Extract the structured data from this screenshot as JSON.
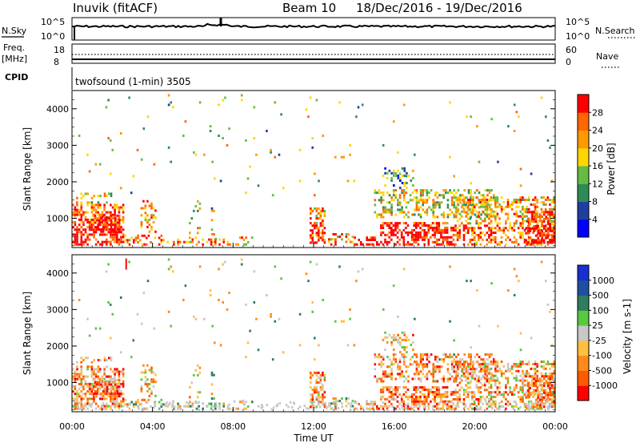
{
  "header": {
    "station": "Inuvik (fitACF)",
    "beam": "Beam 10",
    "date_range": "18/Dec/2016 - 19/Dec/2016"
  },
  "strip_labels": {
    "nsky": "N.Sky",
    "nsearch": "N.Search",
    "freq_line1": "Freq.",
    "freq_line2": "[MHz]",
    "nave": "Nave",
    "cpid": "CPID",
    "cpid_text": "twofsound (1-min) 3505",
    "noise_left_ticks": [
      "10^5",
      "10^0"
    ],
    "noise_right_ticks": [
      "10^5",
      "10^0"
    ],
    "freq_left_ticks": [
      "18",
      "8"
    ],
    "freq_right_ticks": [
      "60",
      "0"
    ]
  },
  "colors": {
    "power_scale": [
      "#0000ff",
      "#1f3f9f",
      "#2e8b57",
      "#66bb44",
      "#ffd700",
      "#ff9900",
      "#ff6600",
      "#ff0000"
    ],
    "velocity_scale": [
      "#ff0000",
      "#ff5a00",
      "#ff8a1a",
      "#ffbf40",
      "#c8c8c8",
      "#57c840",
      "#2e7d5c",
      "#1f4f9f",
      "#1a2fcf"
    ]
  },
  "chart_data": [
    {
      "type": "heatmap",
      "panel": "power",
      "ylabel": "Slant Range [km]",
      "ylim": [
        200,
        4500
      ],
      "y_ticks": [
        "1000",
        "2000",
        "3000",
        "4000"
      ],
      "colorbar_label": "Power [dB]",
      "colorbar_ticks": [
        "4",
        "8",
        "12",
        "16",
        "20",
        "24",
        "28"
      ],
      "colorbar_range": [
        0,
        32
      ]
    },
    {
      "type": "heatmap",
      "panel": "velocity",
      "ylabel": "Slant Range [km]",
      "ylim": [
        200,
        4500
      ],
      "y_ticks": [
        "1000",
        "2000",
        "3000",
        "4000"
      ],
      "colorbar_label": "Velocity [m s-1]",
      "colorbar_ticks": [
        "1000",
        "500",
        "100",
        "25",
        "-25",
        "-100",
        "-500",
        "-1000"
      ]
    }
  ],
  "time_axis": {
    "label": "Time UT",
    "ticks": [
      "00:00",
      "04:00",
      "08:00",
      "12:00",
      "16:00",
      "20:00",
      "00:00"
    ],
    "range_hours": [
      0,
      24
    ]
  }
}
